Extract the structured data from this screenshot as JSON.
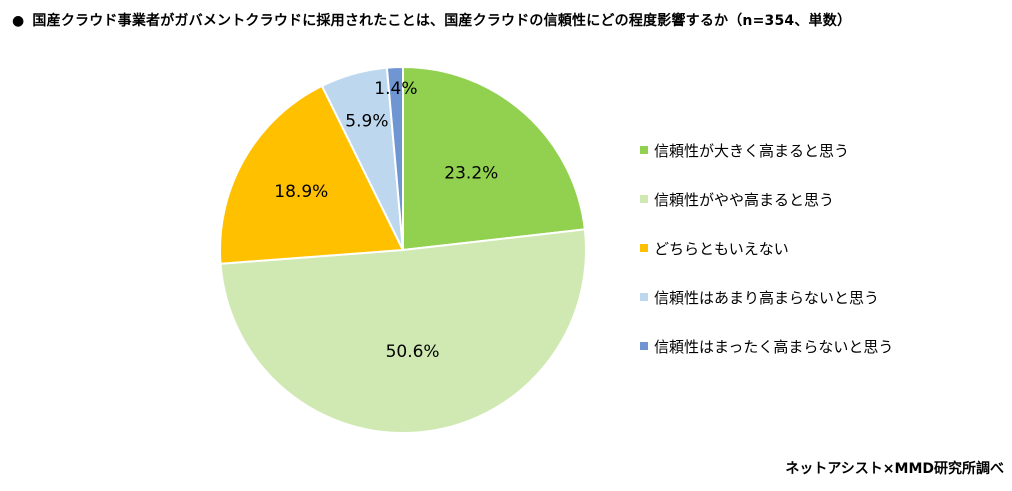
{
  "header": {
    "bullet": "●",
    "title": "国産クラウド事業者がガバメントクラウドに採用されたことは、国産クラウドの信頼性にどの程度影響するか（n=354、単数）"
  },
  "source": "ネットアシスト×MMD研究所調べ",
  "chart_data": {
    "type": "pie",
    "title": "国産クラウド事業者がガバメントクラウドに採用されたことは、国産クラウドの信頼性にどの程度影響するか（n=354、単数）",
    "start_angle": "12 o'clock",
    "direction": "clockwise",
    "slices": [
      {
        "label": "信頼性が大きく高まると思う",
        "value": 23.2,
        "value_label": "23.2%",
        "color": "#92d050"
      },
      {
        "label": "信頼性がやや高まると思う",
        "value": 50.6,
        "value_label": "50.6%",
        "color": "#d0e9b3"
      },
      {
        "label": "どちらともいえない",
        "value": 18.9,
        "value_label": "18.9%",
        "color": "#ffc000"
      },
      {
        "label": "信頼性はあまり高まらないと思う",
        "value": 5.9,
        "value_label": "5.9%",
        "color": "#bdd7ee"
      },
      {
        "label": "信頼性はまったく高まらないと思う",
        "value": 1.4,
        "value_label": "1.4%",
        "color": "#6f96d2"
      }
    ],
    "legend_position": "right"
  }
}
